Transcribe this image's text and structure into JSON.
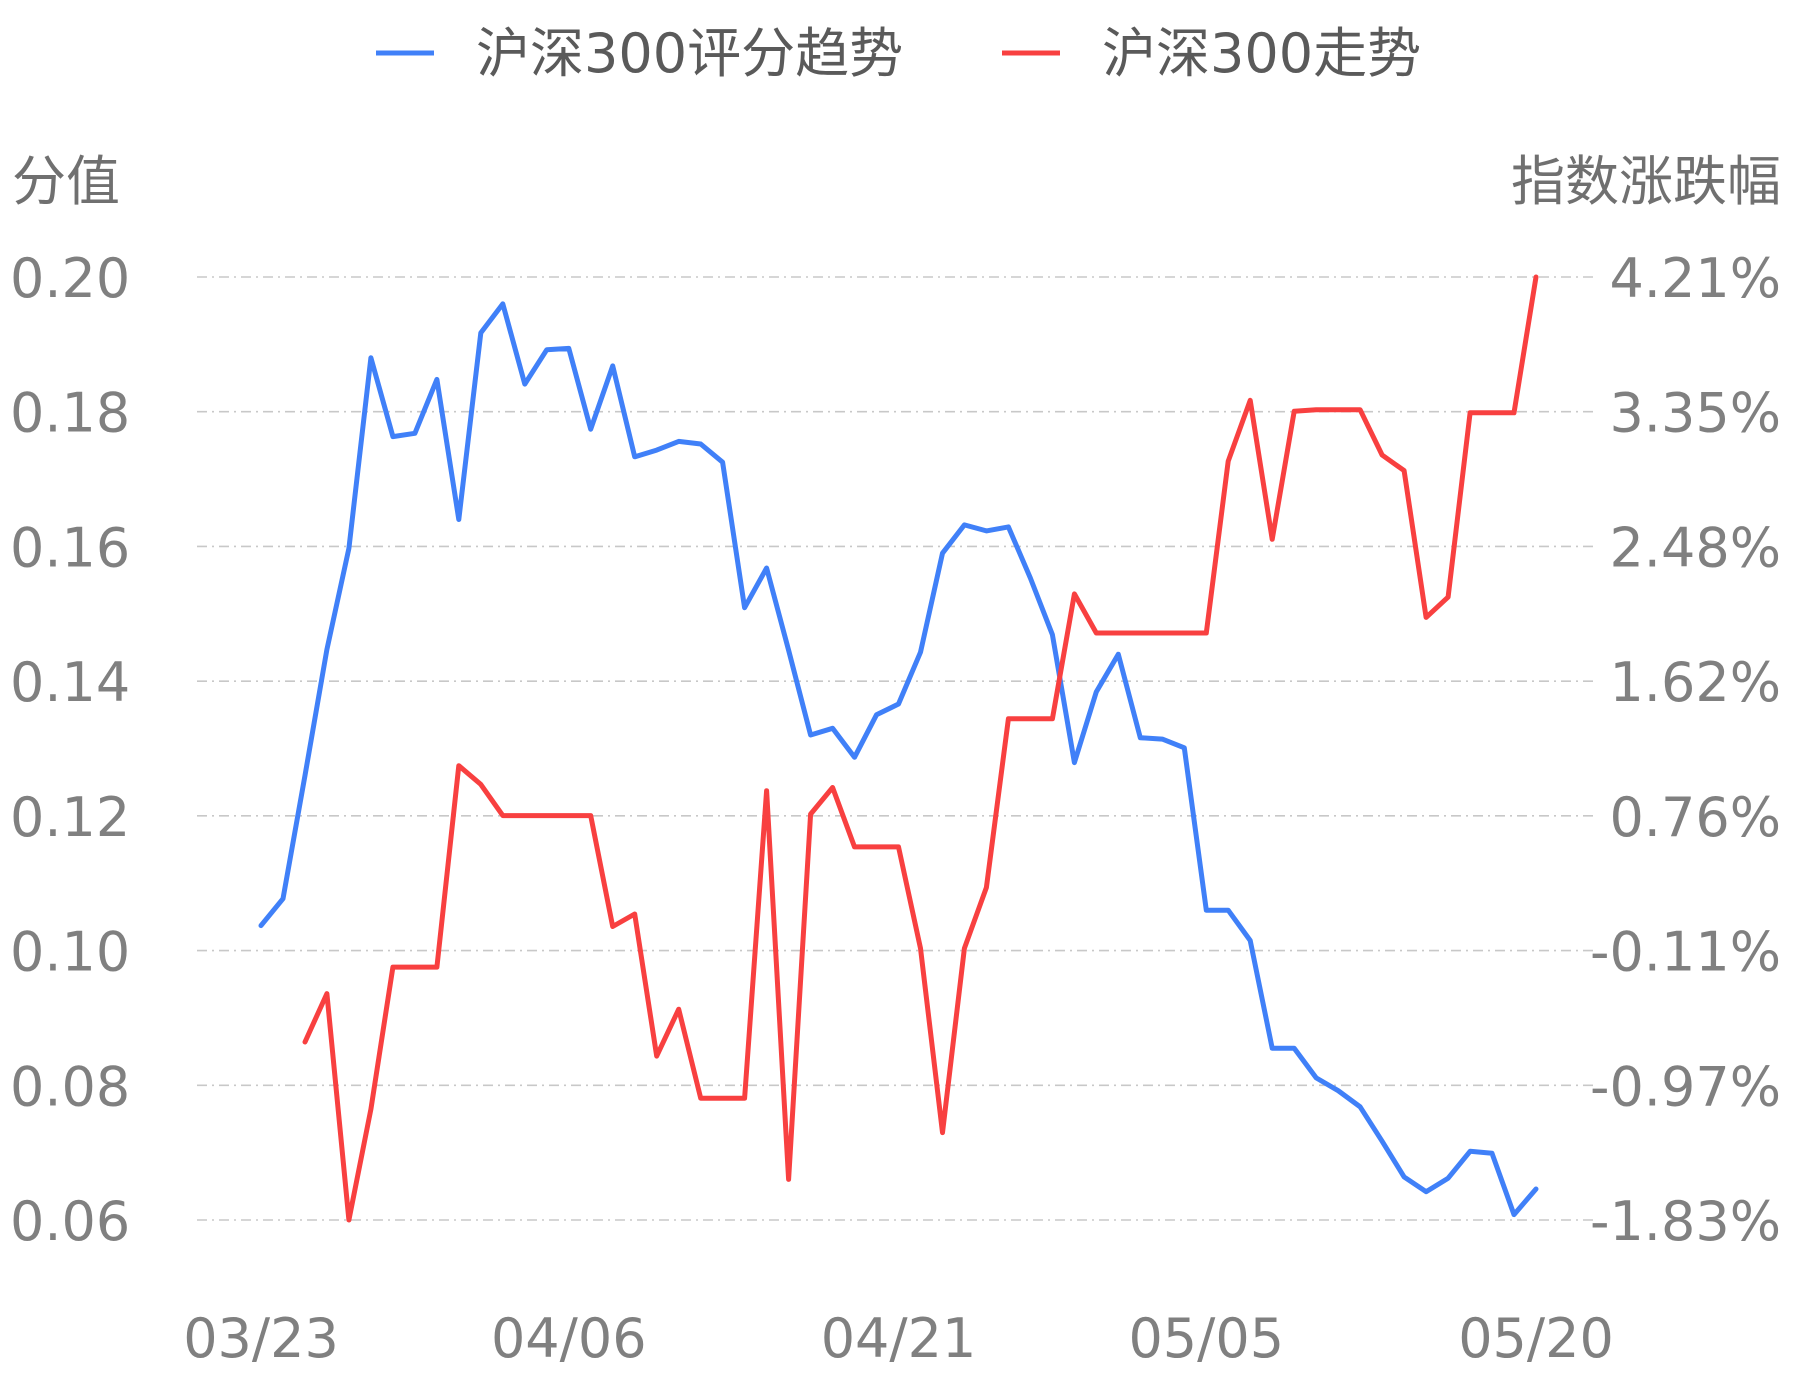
{
  "chart_data": {
    "type": "line",
    "legend": {
      "placement": "top-center"
    },
    "grid": true,
    "left_axis": {
      "title": "分值",
      "ylim": [
        0.06,
        0.2
      ],
      "ticks": [
        "0.06",
        "0.08",
        "0.10",
        "0.12",
        "0.14",
        "0.16",
        "0.18",
        "0.20"
      ]
    },
    "right_axis": {
      "title": "指数涨跌幅",
      "ylim": [
        -1.83,
        4.21
      ],
      "ticks": [
        "-1.83%",
        "-0.97%",
        "-0.11%",
        "0.76%",
        "1.62%",
        "2.48%",
        "3.35%",
        "4.21%"
      ]
    },
    "x_ticks": [
      "03/23",
      "04/06",
      "04/21",
      "05/05",
      "05/20"
    ],
    "x_tick_index": [
      0,
      14,
      29,
      43,
      58
    ],
    "series": [
      {
        "name": "沪深300评分趋势",
        "axis": "left",
        "color": "#4080f8",
        "values": [
          0.1037,
          0.1077,
          0.126,
          0.1447,
          0.1597,
          0.188,
          0.1763,
          0.1768,
          0.1848,
          0.164,
          0.1917,
          0.196,
          0.1841,
          0.1892,
          0.1894,
          0.1774,
          0.1868,
          0.1733,
          0.1743,
          0.1756,
          0.1752,
          0.1725,
          0.1509,
          0.1568,
          0.1446,
          0.132,
          0.133,
          0.1287,
          0.135,
          0.1366,
          0.1443,
          0.159,
          0.1632,
          0.1623,
          0.1629,
          0.1553,
          0.1469,
          0.1279,
          0.1384,
          0.144,
          0.1316,
          0.1314,
          0.1301,
          0.106,
          0.106,
          0.1015,
          0.0855,
          0.0855,
          0.0811,
          0.0792,
          0.0768,
          0.0717,
          0.0664,
          0.0642,
          0.0662,
          0.0702,
          0.0699,
          0.0608,
          0.0646
        ]
      },
      {
        "name": "沪深300走势",
        "axis": "right",
        "color": "#f84040",
        "values": [
          null,
          null,
          -0.69,
          -0.38,
          -1.83,
          -1.12,
          -0.21,
          -0.21,
          -0.21,
          1.08,
          0.96,
          0.76,
          0.76,
          0.76,
          0.76,
          0.76,
          0.05,
          0.13,
          -0.78,
          -0.48,
          -1.05,
          -1.05,
          -1.05,
          0.92,
          -1.57,
          0.77,
          0.94,
          0.56,
          0.56,
          0.56,
          -0.09,
          -1.27,
          -0.09,
          0.3,
          1.38,
          1.38,
          1.38,
          2.18,
          1.93,
          1.93,
          1.93,
          1.93,
          1.93,
          1.93,
          3.03,
          3.42,
          2.53,
          3.35,
          3.36,
          3.36,
          3.36,
          3.07,
          2.97,
          2.03,
          2.16,
          3.34,
          3.34,
          3.34,
          4.21
        ]
      }
    ]
  }
}
